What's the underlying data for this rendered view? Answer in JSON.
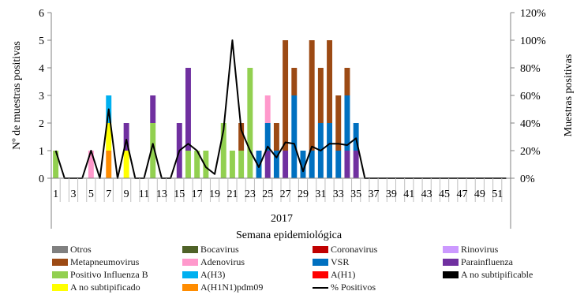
{
  "chart_data": {
    "type": "bar",
    "stacked": true,
    "categories": [
      1,
      2,
      3,
      4,
      5,
      6,
      7,
      8,
      9,
      10,
      11,
      12,
      13,
      14,
      15,
      16,
      17,
      18,
      19,
      20,
      21,
      22,
      23,
      24,
      25,
      26,
      27,
      28,
      29,
      30,
      31,
      32,
      33,
      34,
      35,
      36,
      37,
      38,
      39,
      40,
      41,
      42,
      43,
      44,
      45,
      46,
      47,
      48,
      49,
      50,
      51,
      52
    ],
    "x_tick_labels": [
      "1",
      "3",
      "5",
      "7",
      "9",
      "11",
      "13",
      "15",
      "17",
      "19",
      "21",
      "23",
      "25",
      "27",
      "29",
      "31",
      "33",
      "35",
      "37",
      "39",
      "41",
      "43",
      "45",
      "47",
      "49",
      "51"
    ],
    "group_label": "2017",
    "xlabel": "Semana epidemiológica",
    "ylabel": "Nº de muestras positivas",
    "ylabel_right": "Muestras positivas",
    "ylim": [
      0,
      6
    ],
    "ylim_right": [
      0,
      120
    ],
    "y_ticks": [
      "0",
      "1",
      "2",
      "3",
      "4",
      "5",
      "6"
    ],
    "y_ticks_right": [
      "0%",
      "20%",
      "40%",
      "60%",
      "80%",
      "100%",
      "120%"
    ],
    "series": [
      {
        "name": "Otros",
        "color": "#808080",
        "values": [
          0,
          0,
          0,
          0,
          0,
          0,
          0,
          0,
          0,
          0,
          0,
          0,
          0,
          0,
          0,
          0,
          0,
          0,
          0,
          0,
          0,
          0,
          0,
          0,
          0,
          0,
          0,
          0,
          0,
          0,
          0,
          0,
          0,
          0,
          0,
          0,
          0,
          0,
          0,
          0,
          0,
          0,
          0,
          0,
          0,
          0,
          0,
          0,
          0,
          0,
          0,
          0
        ]
      },
      {
        "name": "Bocavirus",
        "color": "#4f6228",
        "values": [
          0,
          0,
          0,
          0,
          0,
          0,
          0,
          0,
          0,
          0,
          0,
          0,
          0,
          0,
          0,
          0,
          0,
          0,
          0,
          0,
          0,
          0,
          0,
          0,
          0,
          0,
          0,
          0,
          0,
          0,
          0,
          0,
          0,
          0,
          0,
          0,
          0,
          0,
          0,
          0,
          0,
          0,
          0,
          0,
          0,
          0,
          0,
          0,
          0,
          0,
          0,
          0
        ]
      },
      {
        "name": "Coronavirus",
        "color": "#c00000",
        "values": [
          0,
          0,
          0,
          0,
          0,
          0,
          0,
          0,
          0,
          0,
          0,
          0,
          0,
          0,
          0,
          0,
          0,
          0,
          0,
          0,
          0,
          0,
          0,
          0,
          0,
          0,
          0,
          0,
          0,
          0,
          0,
          0,
          0,
          0,
          0,
          0,
          0,
          0,
          0,
          0,
          0,
          0,
          0,
          0,
          0,
          0,
          0,
          0,
          0,
          0,
          0,
          0
        ]
      },
      {
        "name": "Rinovirus",
        "color": "#cc99ff",
        "values": [
          0,
          0,
          0,
          0,
          0,
          0,
          0,
          0,
          0,
          0,
          0,
          0,
          0,
          0,
          0,
          0,
          0,
          0,
          0,
          0,
          0,
          0,
          0,
          0,
          0,
          0,
          0,
          0,
          0,
          0,
          0,
          0,
          0,
          0,
          0,
          0,
          0,
          0,
          0,
          0,
          0,
          0,
          0,
          0,
          0,
          0,
          0,
          0,
          0,
          0,
          0,
          0
        ]
      },
      {
        "name": "A(H1N1)pdm09",
        "color": "#ff8c00",
        "values": [
          0,
          0,
          0,
          0,
          0,
          0,
          1,
          0,
          0,
          0,
          0,
          0,
          0,
          0,
          0,
          0,
          0,
          0,
          0,
          0,
          0,
          0,
          0,
          0,
          0,
          0,
          0,
          0,
          0,
          0,
          0,
          0,
          0,
          0,
          0,
          0,
          0,
          0,
          0,
          0,
          0,
          0,
          0,
          0,
          0,
          0,
          0,
          0,
          0,
          0,
          0,
          0
        ]
      },
      {
        "name": "A no subtipificado",
        "color": "#ffff00",
        "values": [
          0,
          0,
          0,
          0,
          0,
          0,
          1,
          0,
          1,
          0,
          0,
          0,
          0,
          0,
          0,
          0,
          0,
          0,
          0,
          0,
          0,
          0,
          0,
          0,
          0,
          0,
          0,
          0,
          0,
          0,
          0,
          0,
          0,
          0,
          0,
          0,
          0,
          0,
          0,
          0,
          0,
          0,
          0,
          0,
          0,
          0,
          0,
          0,
          0,
          0,
          0,
          0
        ]
      },
      {
        "name": "A no subtipificable",
        "color": "#000000",
        "values": [
          0,
          0,
          0,
          0,
          0,
          0,
          0,
          0,
          0,
          0,
          0,
          0,
          0,
          0,
          0,
          0,
          0,
          0,
          0,
          0,
          0,
          0,
          0,
          0,
          0,
          0,
          0,
          0,
          0,
          0,
          0,
          0,
          0,
          0,
          0,
          0,
          0,
          0,
          0,
          0,
          0,
          0,
          0,
          0,
          0,
          0,
          0,
          0,
          0,
          0,
          0,
          0
        ]
      },
      {
        "name": "A(H1)",
        "color": "#ff0000",
        "values": [
          0,
          0,
          0,
          0,
          0,
          0,
          0,
          0,
          0,
          0,
          0,
          0,
          0,
          0,
          0,
          0,
          0,
          0,
          0,
          0,
          0,
          0,
          0,
          0,
          0,
          0,
          0,
          0,
          0,
          0,
          0,
          0,
          0,
          0,
          0,
          0,
          0,
          0,
          0,
          0,
          0,
          0,
          0,
          0,
          0,
          0,
          0,
          0,
          0,
          0,
          0,
          0
        ]
      },
      {
        "name": "A(H3)",
        "color": "#00b0f0",
        "values": [
          0,
          0,
          0,
          0,
          0,
          0,
          1,
          0,
          0,
          0,
          0,
          0,
          0,
          0,
          0,
          0,
          0,
          0,
          0,
          0,
          0,
          0,
          0,
          0,
          0,
          0,
          0,
          0,
          0,
          0,
          0,
          0,
          0,
          0,
          0,
          0,
          0,
          0,
          0,
          0,
          0,
          0,
          0,
          0,
          0,
          0,
          0,
          0,
          0,
          0,
          0,
          0
        ]
      },
      {
        "name": "Positivo Influenza  B",
        "color": "#92d050",
        "values": [
          1,
          0,
          0,
          0,
          0,
          0,
          0,
          0,
          0,
          0,
          0,
          2,
          0,
          0,
          0,
          1,
          1,
          1,
          0,
          2,
          1,
          1,
          4,
          0,
          0,
          0,
          0,
          0,
          0,
          0,
          0,
          0,
          0,
          0,
          0,
          0,
          0,
          0,
          0,
          0,
          0,
          0,
          0,
          0,
          0,
          0,
          0,
          0,
          0,
          0,
          0,
          0
        ]
      },
      {
        "name": "Parainfluenza",
        "color": "#7030a0",
        "values": [
          0,
          0,
          0,
          0,
          0,
          0,
          0,
          0,
          1,
          0,
          0,
          1,
          0,
          0,
          2,
          3,
          0,
          0,
          0,
          0,
          0,
          0,
          0,
          0,
          1,
          0,
          1,
          0,
          0,
          0,
          0,
          0,
          0,
          1,
          1,
          0,
          0,
          0,
          0,
          0,
          0,
          0,
          0,
          0,
          0,
          0,
          0,
          0,
          0,
          0,
          0,
          0
        ]
      },
      {
        "name": "VSR",
        "color": "#0070c0",
        "values": [
          0,
          0,
          0,
          0,
          0,
          0,
          0,
          0,
          0,
          0,
          0,
          0,
          0,
          0,
          0,
          0,
          0,
          0,
          0,
          0,
          0,
          0,
          0,
          1,
          1,
          1,
          0,
          3,
          1,
          1,
          2,
          2,
          1,
          2,
          1,
          0,
          0,
          0,
          0,
          0,
          0,
          0,
          0,
          0,
          0,
          0,
          0,
          0,
          0,
          0,
          0,
          0
        ]
      },
      {
        "name": "Adenovirus",
        "color": "#ff99cc",
        "values": [
          0,
          0,
          0,
          0,
          1,
          0,
          0,
          0,
          0,
          0,
          0,
          0,
          0,
          0,
          0,
          0,
          0,
          0,
          0,
          0,
          0,
          0,
          0,
          0,
          1,
          0,
          0,
          0,
          0,
          0,
          0,
          0,
          0,
          0,
          0,
          0,
          0,
          0,
          0,
          0,
          0,
          0,
          0,
          0,
          0,
          0,
          0,
          0,
          0,
          0,
          0,
          0
        ]
      },
      {
        "name": "Metapneumovirus",
        "color": "#9c4a14",
        "values": [
          0,
          0,
          0,
          0,
          0,
          0,
          0,
          0,
          0,
          0,
          0,
          0,
          0,
          0,
          0,
          0,
          0,
          0,
          0,
          0,
          0,
          1,
          0,
          0,
          0,
          1,
          4,
          1,
          0,
          4,
          2,
          3,
          2,
          1,
          0,
          0,
          0,
          0,
          0,
          0,
          0,
          0,
          0,
          0,
          0,
          0,
          0,
          0,
          0,
          0,
          0,
          0
        ]
      }
    ],
    "line_series": {
      "name": "% Positivos",
      "color": "#000000",
      "axis": "right",
      "values": [
        20,
        0,
        0,
        0,
        20,
        0,
        50,
        0,
        28,
        0,
        0,
        25,
        0,
        0,
        20,
        25,
        20,
        8,
        3,
        35,
        100,
        35,
        20,
        8,
        23,
        15,
        26,
        25,
        5,
        23,
        20,
        25,
        25,
        24,
        29,
        0,
        0,
        0,
        0,
        0,
        0,
        0,
        0,
        0,
        0,
        0,
        0,
        0,
        0,
        0,
        0,
        0
      ]
    },
    "legend": {
      "placement": "bottom",
      "items": [
        {
          "label": "Otros",
          "color": "#808080",
          "kind": "box"
        },
        {
          "label": "Bocavirus",
          "color": "#4f6228",
          "kind": "box"
        },
        {
          "label": "Coronavirus",
          "color": "#c00000",
          "kind": "box"
        },
        {
          "label": "Rinovirus",
          "color": "#cc99ff",
          "kind": "box"
        },
        {
          "label": "Metapneumovirus",
          "color": "#9c4a14",
          "kind": "box"
        },
        {
          "label": "Adenovirus",
          "color": "#ff99cc",
          "kind": "box"
        },
        {
          "label": "VSR",
          "color": "#0070c0",
          "kind": "box"
        },
        {
          "label": "Parainfluenza",
          "color": "#7030a0",
          "kind": "box"
        },
        {
          "label": "Positivo Influenza  B",
          "color": "#92d050",
          "kind": "box"
        },
        {
          "label": "A(H3)",
          "color": "#00b0f0",
          "kind": "box"
        },
        {
          "label": "A(H1)",
          "color": "#ff0000",
          "kind": "box"
        },
        {
          "label": "A no subtipificable",
          "color": "#000000",
          "kind": "box"
        },
        {
          "label": "A no subtipificado",
          "color": "#ffff00",
          "kind": "box"
        },
        {
          "label": "A(H1N1)pdm09",
          "color": "#ff8c00",
          "kind": "box"
        },
        {
          "label": "% Positivos",
          "color": "#000000",
          "kind": "line"
        }
      ]
    },
    "grid": false
  }
}
